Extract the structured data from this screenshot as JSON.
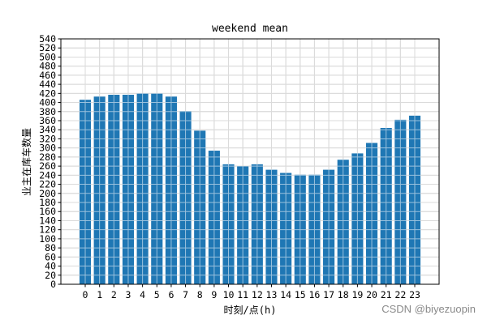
{
  "chart_data": {
    "type": "bar",
    "title": "weekend mean",
    "xlabel": "时刻/点(h)",
    "ylabel": "业主在库车数量",
    "categories": [
      "0",
      "1",
      "2",
      "3",
      "4",
      "5",
      "6",
      "7",
      "8",
      "9",
      "10",
      "11",
      "12",
      "13",
      "14",
      "15",
      "16",
      "17",
      "18",
      "19",
      "20",
      "21",
      "22",
      "23"
    ],
    "values": [
      406,
      413,
      417,
      417,
      420,
      420,
      413,
      381,
      338,
      294,
      264,
      260,
      264,
      252,
      245,
      241,
      241,
      252,
      274,
      288,
      311,
      344,
      362,
      371
    ],
    "ylim": [
      0,
      540
    ],
    "yticks": [
      0,
      20,
      40,
      60,
      80,
      100,
      120,
      140,
      160,
      180,
      200,
      220,
      240,
      260,
      280,
      300,
      320,
      340,
      360,
      380,
      400,
      420,
      440,
      460,
      480,
      500,
      520,
      540
    ],
    "grid": true,
    "bar_color": "#1f77b4",
    "grid_color": "#b0b0b0"
  },
  "watermark": "CSDN @biyezuopin"
}
